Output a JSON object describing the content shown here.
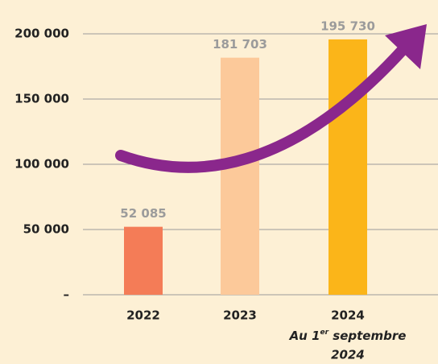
{
  "chart_data": {
    "type": "bar",
    "categories": [
      "2022",
      "2023",
      "2024"
    ],
    "values": [
      52085,
      181703,
      195730
    ],
    "value_labels": [
      "52 085",
      "181 703",
      "195 730"
    ],
    "colors": [
      "#f47c57",
      "#fcc99a",
      "#fbb519"
    ],
    "note": {
      "parts": [
        "Au 1",
        "er",
        " septembre"
      ],
      "line2": "2024"
    },
    "ylim": [
      0,
      200000
    ],
    "yticks": [
      {
        "value": 0,
        "label": "–"
      },
      {
        "value": 50000,
        "label": "50 000"
      },
      {
        "value": 100000,
        "label": "100 000"
      },
      {
        "value": 150000,
        "label": "150 000"
      },
      {
        "value": 200000,
        "label": "200 000"
      }
    ],
    "grid": true
  }
}
